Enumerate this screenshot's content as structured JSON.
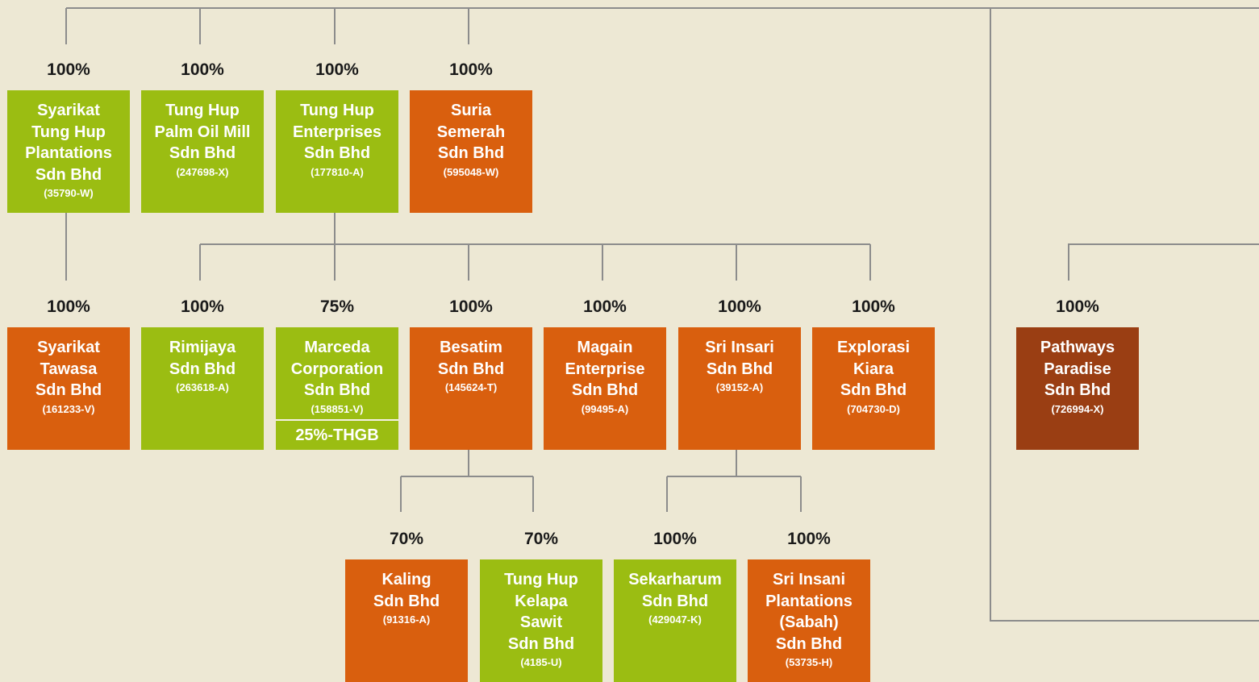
{
  "nodes": [
    {
      "percent": "100%",
      "name_lines": [
        "Syarikat",
        "Tung Hup",
        "Plantations",
        "Sdn Bhd"
      ],
      "reg": "(35790-W)",
      "color": "#9bbd12"
    },
    {
      "percent": "100%",
      "name_lines": [
        "Tung Hup",
        "Palm Oil Mill",
        "Sdn Bhd"
      ],
      "reg": "(247698-X)",
      "color": "#9bbd12"
    },
    {
      "percent": "100%",
      "name_lines": [
        "Tung Hup",
        "Enterprises",
        "Sdn Bhd"
      ],
      "reg": "(177810-A)",
      "color": "#9bbd12"
    },
    {
      "percent": "100%",
      "name_lines": [
        "Suria",
        "Semerah",
        "Sdn Bhd"
      ],
      "reg": "(595048-W)",
      "color": "#d95f0e"
    },
    {
      "percent": "100%",
      "name_lines": [
        "Syarikat",
        "Tawasa",
        "Sdn Bhd"
      ],
      "reg": "(161233-V)",
      "color": "#d95f0e"
    },
    {
      "percent": "100%",
      "name_lines": [
        "Rimijaya",
        "Sdn Bhd"
      ],
      "reg": "(263618-A)",
      "color": "#9bbd12"
    },
    {
      "percent": "75%",
      "name_lines": [
        "Marceda",
        "Corporation",
        "Sdn Bhd"
      ],
      "reg": "(158851-V)",
      "color": "#9bbd12",
      "note": "25%-THGB"
    },
    {
      "percent": "100%",
      "name_lines": [
        "Besatim",
        "Sdn Bhd"
      ],
      "reg": "(145624-T)",
      "color": "#d95f0e"
    },
    {
      "percent": "100%",
      "name_lines": [
        "Magain",
        "Enterprise",
        "Sdn Bhd"
      ],
      "reg": "(99495-A)",
      "color": "#d95f0e"
    },
    {
      "percent": "100%",
      "name_lines": [
        "Sri Insari",
        "Sdn Bhd"
      ],
      "reg": "(39152-A)",
      "color": "#d95f0e"
    },
    {
      "percent": "100%",
      "name_lines": [
        "Explorasi",
        "Kiara",
        "Sdn Bhd"
      ],
      "reg": "(704730-D)",
      "color": "#d95f0e"
    },
    {
      "percent": "100%",
      "name_lines": [
        "Pathways",
        "Paradise",
        "Sdn Bhd"
      ],
      "reg": "(726994-X)",
      "color": "#9a3e13"
    },
    {
      "percent": "70%",
      "name_lines": [
        "Kaling",
        "Sdn Bhd"
      ],
      "reg": "(91316-A)",
      "color": "#d95f0e"
    },
    {
      "percent": "70%",
      "name_lines": [
        "Tung Hup",
        "Kelapa",
        "Sawit",
        "Sdn Bhd"
      ],
      "reg": "(4185-U)",
      "color": "#9bbd12"
    },
    {
      "percent": "100%",
      "name_lines": [
        "Sekarharum",
        "Sdn Bhd"
      ],
      "reg": "(429047-K)",
      "color": "#9bbd12"
    },
    {
      "percent": "100%",
      "name_lines": [
        "Sri Insani",
        "Plantations",
        "(Sabah)",
        "Sdn Bhd"
      ],
      "reg": "(53735-H)",
      "color": "#d95f0e"
    }
  ]
}
